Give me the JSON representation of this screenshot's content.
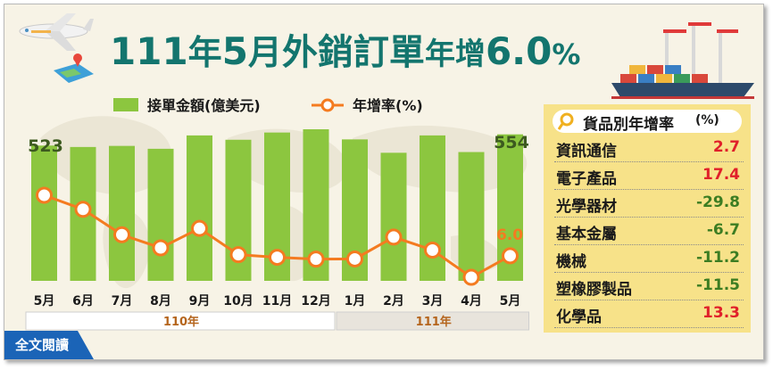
{
  "title": {
    "part1": "111",
    "part2": "年",
    "part3": "5",
    "part4": "月",
    "part5": "外銷訂單",
    "part6": "年增",
    "part7": "6.0",
    "part8": "%"
  },
  "colors": {
    "bar": "#8cc63f",
    "line": "#f47b20",
    "title": "#13756e",
    "pos_value": "#e0202a",
    "neg_value": "#3c7d22"
  },
  "chart_data": {
    "type": "bar",
    "categories": [
      "5月",
      "6月",
      "7月",
      "8月",
      "9月",
      "10月",
      "11月",
      "12月",
      "1月",
      "2月",
      "3月",
      "4月",
      "5月"
    ],
    "year_groups": [
      {
        "label": "110年",
        "span": 8
      },
      {
        "label": "111年",
        "span": 5
      }
    ],
    "series": [
      {
        "name": "接單金額(億美元)",
        "type": "bar",
        "values": [
          523,
          519,
          522,
          514,
          551,
          539,
          559,
          568,
          540,
          503,
          551,
          505,
          554
        ]
      },
      {
        "name": "年增率(%)",
        "type": "line",
        "values": [
          38.7,
          31.1,
          17.4,
          10.3,
          20.8,
          6.6,
          5.2,
          4.2,
          4.3,
          16.1,
          9.1,
          -5.6,
          6.0
        ]
      }
    ],
    "data_labels": {
      "first_bar": "523",
      "last_bar": "554",
      "last_point": "6.0"
    },
    "legend_position": "top-left",
    "grid": false
  },
  "side_panel": {
    "title": "貨品別年增率",
    "unit": "(%)",
    "items": [
      {
        "name": "資訊通信",
        "value": "2.7"
      },
      {
        "name": "電子產品",
        "value": "17.4"
      },
      {
        "name": "光學器材",
        "value": "-29.8"
      },
      {
        "name": "基本金屬",
        "value": "-6.7"
      },
      {
        "name": "機械",
        "value": "-11.2"
      },
      {
        "name": "塑橡膠製品",
        "value": "-11.5"
      },
      {
        "name": "化學品",
        "value": "13.3"
      }
    ]
  },
  "read_all_label": "全文閱讀"
}
